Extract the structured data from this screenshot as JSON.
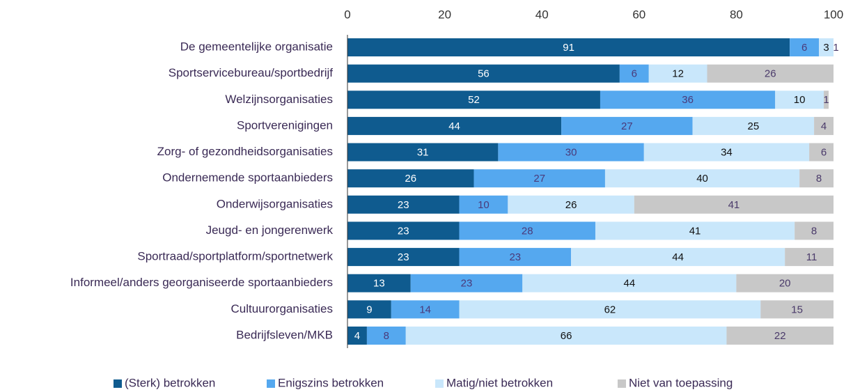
{
  "chart_data": {
    "type": "stacked_barh",
    "categories": [
      "De gemeentelijke organisatie",
      "Sportservicebureau/sportbedrijf",
      "Welzijnsorganisaties",
      "Sportverenigingen",
      "Zorg- of gezondheidsorganisaties",
      "Ondernemende sportaanbieders",
      "Onderwijsorganisaties",
      "Jeugd- en jongerenwerk",
      "Sportraad/sportplatform/sportnetwerk",
      "Informeel/anders georganiseerde sportaanbieders",
      "Cultuurorganisaties",
      "Bedrijfsleven/MKB"
    ],
    "series": [
      {
        "name": "(Sterk) betrokken",
        "color": "#0f5b8f",
        "values": [
          91,
          56,
          52,
          44,
          31,
          26,
          23,
          23,
          23,
          13,
          9,
          4
        ]
      },
      {
        "name": "Enigszins betrokken",
        "color": "#55a8ef",
        "values": [
          6,
          6,
          36,
          27,
          30,
          27,
          10,
          28,
          23,
          23,
          14,
          8
        ]
      },
      {
        "name": "Matig/niet betrokken",
        "color": "#c9e7fb",
        "values": [
          3,
          12,
          10,
          25,
          34,
          40,
          26,
          41,
          44,
          44,
          62,
          66
        ]
      },
      {
        "name": "Niet van toepassing",
        "color": "#c8c8c8",
        "values": [
          1,
          26,
          1,
          4,
          6,
          8,
          41,
          8,
          11,
          20,
          15,
          22
        ]
      }
    ],
    "xlim": [
      0,
      100
    ],
    "xticks": [
      0,
      20,
      40,
      60,
      80,
      100
    ],
    "legend": "bottom"
  }
}
